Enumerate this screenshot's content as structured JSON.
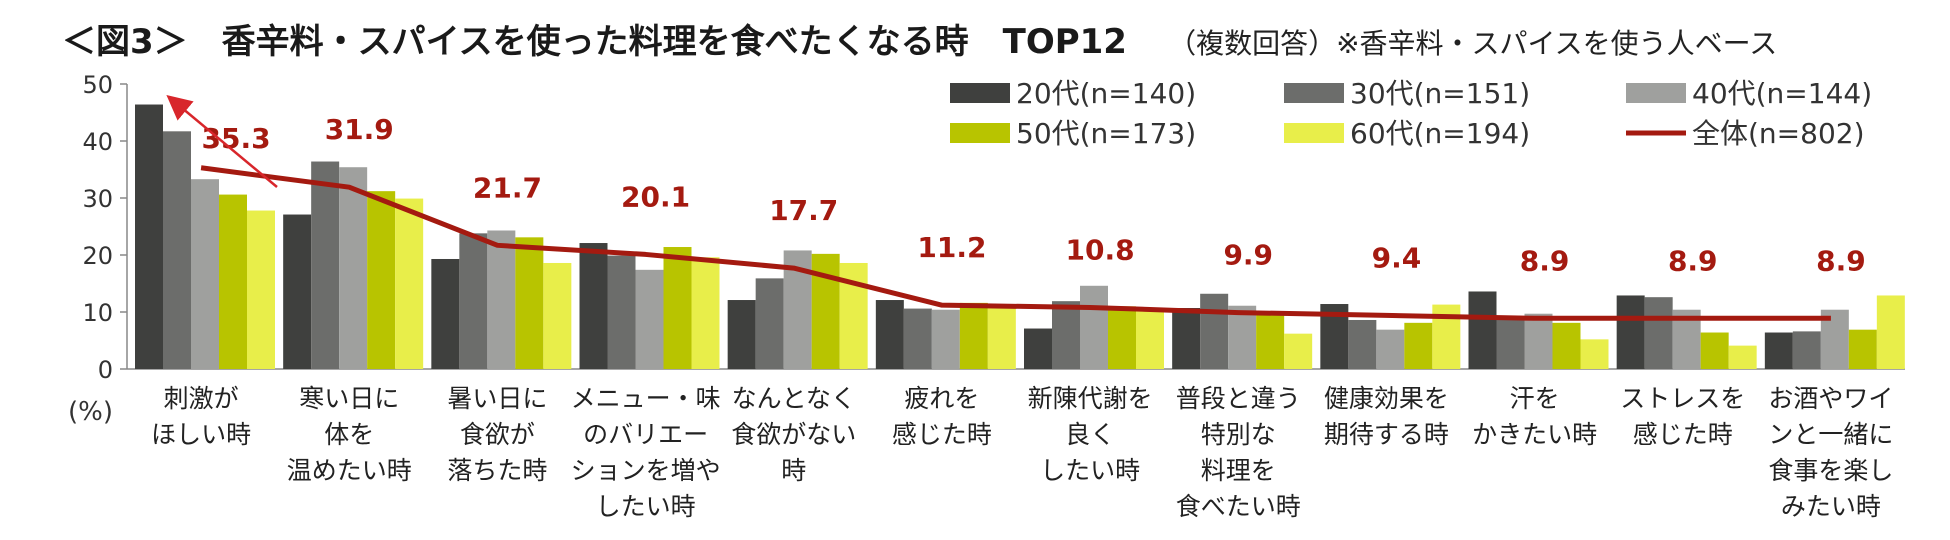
{
  "title": "＜図3＞　香辛料・スパイスを使った料理を食べたくなる時　TOP12",
  "subtitle": "（複数回答）※香辛料・スパイスを使う人ベース",
  "chart_data": {
    "type": "bar",
    "ylim": [
      0,
      50
    ],
    "yticks": [
      0,
      10,
      20,
      30,
      40,
      50
    ],
    "ylabel": "(%)",
    "categories": [
      [
        "刺激が",
        "ほしい時"
      ],
      [
        "寒い日に",
        "体を",
        "温めたい時"
      ],
      [
        "暑い日に",
        "食欲が",
        "落ちた時"
      ],
      [
        "メニュー・味",
        "のバリエー",
        "ションを増や",
        "したい時"
      ],
      [
        "なんとなく",
        "食欲がない",
        "時"
      ],
      [
        "疲れを",
        "感じた時"
      ],
      [
        "新陳代謝を",
        "良く",
        "したい時"
      ],
      [
        "普段と違う",
        "特別な",
        "料理を",
        "食べたい時"
      ],
      [
        "健康効果を",
        "期待する時"
      ],
      [
        "汗を",
        "かきたい時"
      ],
      [
        "ストレスを",
        "感じた時"
      ],
      [
        "お酒やワイ",
        "ンと一緒に",
        "食事を楽し",
        "みたい時"
      ]
    ],
    "series": [
      {
        "name": "20代(n=140)",
        "color": "#3f403e",
        "values": [
          46.4,
          27.1,
          19.3,
          22.1,
          12.1,
          12.1,
          7.1,
          10.7,
          11.4,
          13.6,
          12.9,
          6.4
        ]
      },
      {
        "name": "30代(n=151)",
        "color": "#6c6d6b",
        "values": [
          41.7,
          36.4,
          23.8,
          19.9,
          15.9,
          10.6,
          11.9,
          13.2,
          8.6,
          9.3,
          12.6,
          6.6
        ]
      },
      {
        "name": "40代(n=144)",
        "color": "#9fa09e",
        "values": [
          33.3,
          35.4,
          24.3,
          17.4,
          20.8,
          10.4,
          14.6,
          11.1,
          6.9,
          9.7,
          10.4,
          10.4
        ]
      },
      {
        "name": "50代(n=173)",
        "color": "#b8c400",
        "values": [
          30.6,
          31.2,
          23.1,
          21.4,
          20.2,
          11.6,
          11.0,
          9.8,
          8.1,
          8.1,
          6.4,
          6.9
        ]
      },
      {
        "name": "60代(n=194)",
        "color": "#e8ee4a",
        "values": [
          27.8,
          29.9,
          18.6,
          19.6,
          18.6,
          11.3,
          10.3,
          6.2,
          11.3,
          5.2,
          4.1,
          12.9
        ]
      }
    ],
    "total": {
      "name": "全体(n=802)",
      "color": "#a41a10",
      "values": [
        35.3,
        31.9,
        21.7,
        20.1,
        17.7,
        11.2,
        10.8,
        9.9,
        9.4,
        8.9,
        8.9,
        8.9
      ],
      "labels": [
        "35.3",
        "31.9",
        "21.7",
        "20.1",
        "17.7",
        "11.2",
        "10.8",
        "9.9",
        "9.4",
        "8.9",
        "8.9",
        "8.9"
      ]
    },
    "legend": [
      "20代(n=140)",
      "30代(n=151)",
      "40代(n=144)",
      "50代(n=173)",
      "60代(n=194)",
      "全体(n=802)"
    ]
  }
}
